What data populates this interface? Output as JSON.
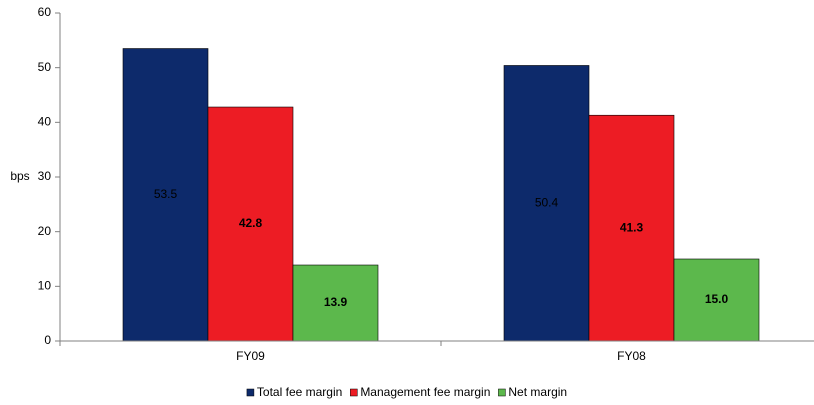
{
  "chart_data": {
    "type": "bar",
    "y_label": "bps",
    "categories": [
      "FY09",
      "FY08"
    ],
    "series": [
      {
        "name": "Total fee margin",
        "color": "#0d2a6b",
        "values": [
          53.5,
          50.4
        ],
        "value_labels": [
          "53.5",
          "50.4"
        ]
      },
      {
        "name": "Management fee margin",
        "color": "#ed1c24",
        "values": [
          42.8,
          41.3
        ],
        "value_labels": [
          "42.8",
          "41.3"
        ]
      },
      {
        "name": "Net margin",
        "color": "#5cb84c",
        "values": [
          13.9,
          15.0
        ],
        "value_labels": [
          "13.9",
          "15.0"
        ]
      }
    ],
    "ylim": [
      0,
      60
    ],
    "yticks": [
      0,
      10,
      20,
      30,
      40,
      50,
      60
    ],
    "grid": false,
    "legend": "bottom"
  }
}
